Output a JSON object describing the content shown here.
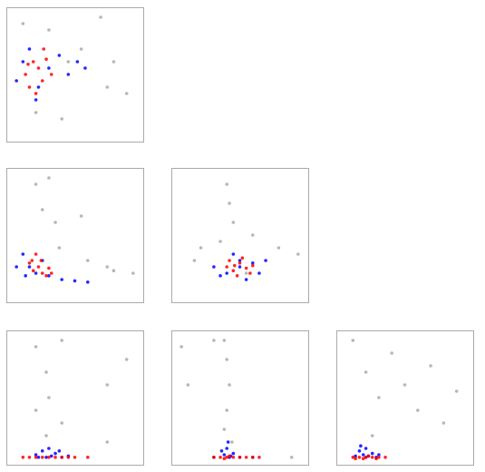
{
  "chart_data": [
    {
      "type": "scatter",
      "xlim": [
        0,
        100
      ],
      "ylim": [
        0,
        100
      ],
      "series": [
        {
          "color": "#aaaaaa",
          "x": [
            10,
            20,
            30,
            45,
            55,
            70,
            80,
            75,
            90,
            40
          ],
          "values": [
            90,
            20,
            85,
            60,
            70,
            95,
            60,
            40,
            35,
            15
          ]
        },
        {
          "color": "#0000ff",
          "x": [
            5,
            10,
            15,
            22,
            30,
            38,
            45,
            52,
            58,
            20
          ],
          "values": [
            45,
            60,
            70,
            40,
            55,
            65,
            50,
            60,
            55,
            30
          ]
        },
        {
          "color": "#ff0000",
          "x": [
            12,
            15,
            18,
            22,
            25,
            28,
            32,
            20,
            26,
            14
          ],
          "values": [
            50,
            40,
            60,
            55,
            45,
            62,
            50,
            35,
            70,
            58
          ]
        }
      ]
    },
    {
      "type": "scatter",
      "xlim": [
        0,
        100
      ],
      "ylim": [
        0,
        100
      ],
      "series": [
        {
          "color": "#aaaaaa",
          "x": [
            20,
            25,
            35,
            38,
            55,
            60,
            75,
            80,
            95,
            30
          ],
          "values": [
            90,
            70,
            60,
            40,
            65,
            30,
            25,
            22,
            20,
            95
          ]
        },
        {
          "color": "#0000ff",
          "x": [
            5,
            10,
            15,
            20,
            30,
            40,
            50,
            60,
            25,
            12
          ],
          "values": [
            25,
            35,
            25,
            20,
            18,
            15,
            14,
            13,
            30,
            18
          ]
        },
        {
          "color": "#ff0000",
          "x": [
            15,
            18,
            20,
            22,
            25,
            28,
            30,
            17,
            24,
            32
          ],
          "values": [
            28,
            22,
            35,
            25,
            20,
            18,
            24,
            30,
            30,
            20
          ]
        }
      ]
    },
    {
      "type": "scatter",
      "xlim": [
        0,
        100
      ],
      "ylim": [
        0,
        100
      ],
      "series": [
        {
          "color": "#aaaaaa",
          "x": [
            40,
            42,
            45,
            20,
            15,
            60,
            80,
            95,
            55,
            35
          ],
          "values": [
            90,
            75,
            60,
            40,
            30,
            50,
            40,
            35,
            20,
            45
          ]
        },
        {
          "color": "#0000ff",
          "x": [
            30,
            40,
            50,
            60,
            70,
            45,
            55,
            35,
            65,
            50
          ],
          "values": [
            25,
            20,
            25,
            28,
            30,
            35,
            15,
            18,
            20,
            30
          ]
        },
        {
          "color": "#ff0000",
          "x": [
            40,
            45,
            50,
            55,
            60,
            48,
            52,
            42,
            58,
            46
          ],
          "values": [
            25,
            22,
            28,
            24,
            26,
            18,
            32,
            30,
            20,
            26
          ]
        }
      ]
    },
    {
      "type": "scatter",
      "xlim": [
        0,
        100
      ],
      "ylim": [
        0,
        100
      ],
      "series": [
        {
          "color": "#aaaaaa",
          "x": [
            20,
            20,
            28,
            28,
            30,
            40,
            40,
            75,
            75,
            90
          ],
          "values": [
            90,
            40,
            70,
            20,
            50,
            95,
            30,
            60,
            15,
            80
          ]
        },
        {
          "color": "#0000ff",
          "x": [
            20,
            25,
            28,
            30,
            32,
            35,
            40,
            22,
            45,
            38
          ],
          "values": [
            5,
            8,
            3,
            10,
            4,
            6,
            3,
            3,
            4,
            8
          ]
        },
        {
          "color": "#ff0000",
          "x": [
            10,
            15,
            20,
            25,
            30,
            35,
            40,
            45,
            50,
            60
          ],
          "values": [
            3,
            3,
            3,
            3,
            3,
            3,
            3,
            3,
            3,
            3
          ]
        }
      ]
    },
    {
      "type": "scatter",
      "xlim": [
        0,
        100
      ],
      "ylim": [
        0,
        100
      ],
      "series": [
        {
          "color": "#aaaaaa",
          "x": [
            38,
            40,
            42,
            40,
            38,
            44,
            5,
            10,
            30,
            90
          ],
          "values": [
            95,
            80,
            60,
            40,
            25,
            15,
            90,
            60,
            95,
            3
          ]
        },
        {
          "color": "#0000ff",
          "x": [
            38,
            40,
            42,
            45,
            36,
            41,
            43,
            50,
            30,
            60
          ],
          "values": [
            5,
            10,
            3,
            6,
            8,
            15,
            4,
            3,
            3,
            3
          ]
        },
        {
          "color": "#ff0000",
          "x": [
            30,
            35,
            40,
            45,
            50,
            55,
            60,
            65,
            42,
            38
          ],
          "values": [
            3,
            3,
            3,
            3,
            3,
            3,
            3,
            3,
            4,
            2
          ]
        }
      ]
    },
    {
      "type": "scatter",
      "xlim": [
        0,
        100
      ],
      "ylim": [
        0,
        100
      ],
      "series": [
        {
          "color": "#aaaaaa",
          "x": [
            10,
            20,
            30,
            40,
            50,
            60,
            70,
            80,
            90,
            25
          ],
          "values": [
            95,
            70,
            50,
            85,
            60,
            40,
            75,
            30,
            55,
            20
          ]
        },
        {
          "color": "#0000ff",
          "x": [
            15,
            18,
            20,
            22,
            25,
            12,
            28,
            16,
            30,
            20
          ],
          "values": [
            8,
            5,
            10,
            4,
            6,
            4,
            3,
            12,
            5,
            3
          ]
        },
        {
          "color": "#ff0000",
          "x": [
            10,
            15,
            20,
            25,
            30,
            35,
            18,
            22,
            12,
            28
          ],
          "values": [
            3,
            3,
            3,
            3,
            3,
            3,
            2,
            4,
            2,
            2
          ]
        }
      ]
    }
  ]
}
